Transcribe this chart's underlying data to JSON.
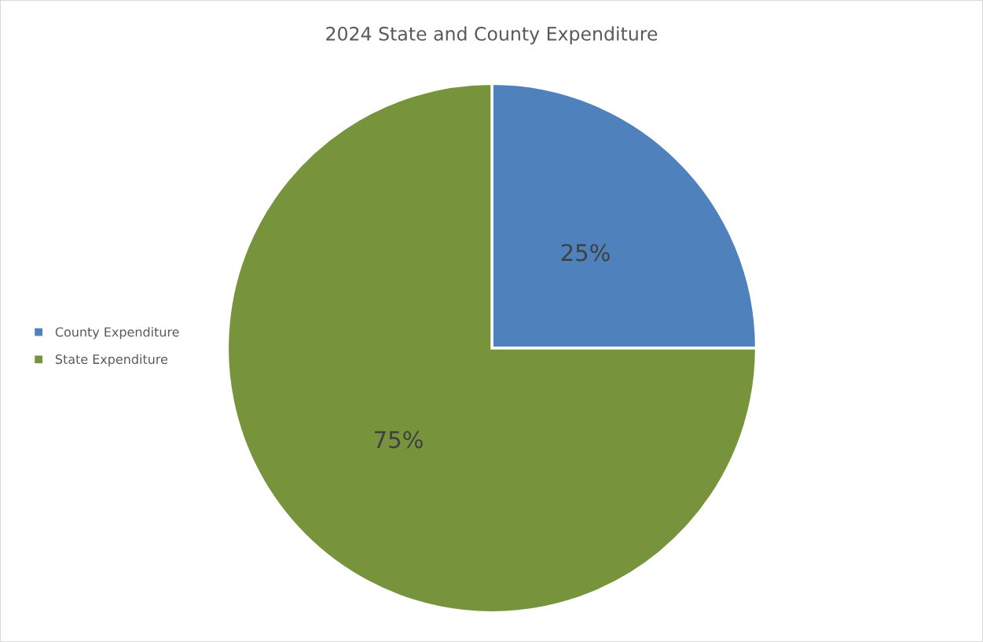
{
  "chart_data": {
    "type": "pie",
    "title": "2024 State and County Expenditure",
    "categories": [
      "County Expenditure",
      "State Expenditure"
    ],
    "values": [
      25,
      75
    ],
    "colors": [
      "#4f81bd",
      "#77933c"
    ],
    "value_labels": [
      "25%",
      "75%"
    ],
    "legend": "left"
  }
}
